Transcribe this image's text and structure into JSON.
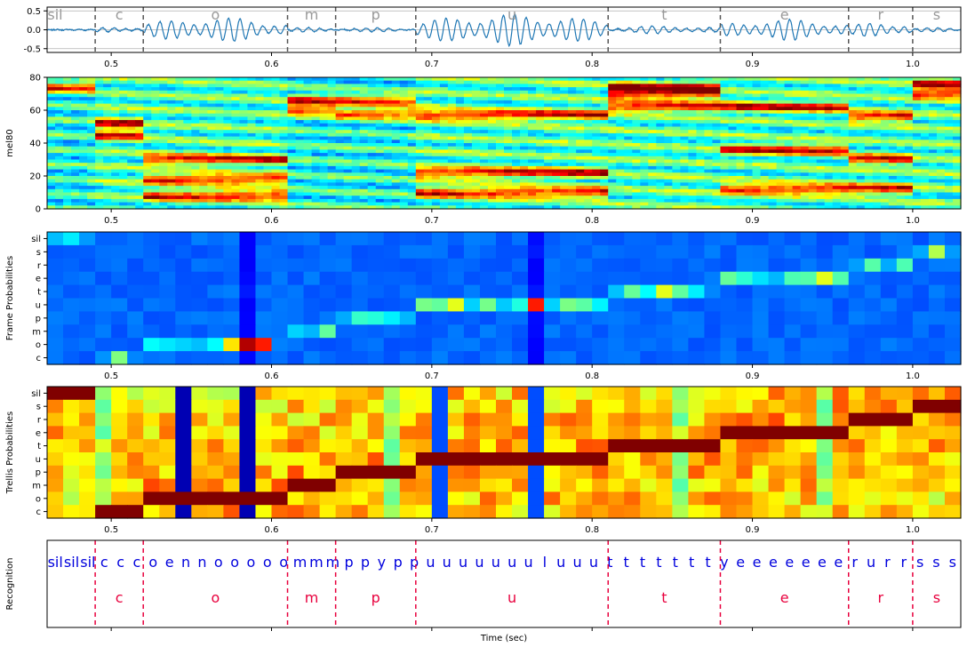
{
  "chart_data": [
    {
      "type": "line",
      "panel": "waveform",
      "xlim": [
        0.46,
        1.03
      ],
      "ylim": [
        -0.6,
        0.6
      ],
      "yticks": [
        "0.5",
        "0.0",
        "-0.5"
      ],
      "xticks": [
        "0.5",
        "0.6",
        "0.7",
        "0.8",
        "0.9",
        "1.0"
      ],
      "segments": [
        {
          "label": "sil",
          "start": 0.46,
          "end": 0.49
        },
        {
          "label": "c",
          "start": 0.49,
          "end": 0.52
        },
        {
          "label": "o",
          "start": 0.52,
          "end": 0.61
        },
        {
          "label": "m",
          "start": 0.61,
          "end": 0.64
        },
        {
          "label": "p",
          "start": 0.64,
          "end": 0.69
        },
        {
          "label": "u",
          "start": 0.69,
          "end": 0.81
        },
        {
          "label": "t",
          "start": 0.81,
          "end": 0.88
        },
        {
          "label": "e",
          "start": 0.88,
          "end": 0.96
        },
        {
          "label": "r",
          "start": 0.96,
          "end": 1.0
        },
        {
          "label": "s",
          "start": 1.0,
          "end": 1.03
        }
      ],
      "color": "#1f77b4"
    },
    {
      "type": "heatmap",
      "panel": "mel",
      "ylabel": "mel80",
      "ylim": [
        0,
        80
      ],
      "yticks": [
        "80",
        "60",
        "40",
        "20",
        "0"
      ],
      "xticks": [
        "0.5",
        "0.6",
        "0.7",
        "0.8",
        "0.9",
        "1.0"
      ],
      "colormap": "jet"
    },
    {
      "type": "heatmap",
      "panel": "frame",
      "ylabel": "Frame Probabilities",
      "rows": [
        "sil",
        "s",
        "r",
        "e",
        "t",
        "u",
        "p",
        "m",
        "o",
        "c"
      ],
      "xticks": [
        "0.5",
        "0.6",
        "0.7",
        "0.8",
        "0.9",
        "1.0"
      ],
      "colormap": "jet"
    },
    {
      "type": "heatmap",
      "panel": "trellis",
      "ylabel": "Trellis Probabilities",
      "rows": [
        "sil",
        "s",
        "r",
        "e",
        "t",
        "u",
        "p",
        "m",
        "o",
        "c"
      ],
      "xticks": [
        "0.5",
        "0.6",
        "0.7",
        "0.8",
        "0.9",
        "1.0"
      ],
      "colormap": "jet"
    },
    {
      "type": "table",
      "panel": "recognition",
      "ylabel": "Recognition",
      "xlabel": "Time (sec)",
      "frame_labels": [
        "sil",
        "sil",
        "sil",
        "c",
        "c",
        "c",
        "o",
        "e",
        "n",
        "n",
        "o",
        "o",
        "o",
        "o",
        "o",
        "m",
        "m",
        "m",
        "p",
        "p",
        "y",
        "p",
        "p",
        "u",
        "u",
        "u",
        "u",
        "u",
        "u",
        "u",
        "l",
        "u",
        "u",
        "u",
        "t",
        "t",
        "t",
        "t",
        "t",
        "t",
        "t",
        "y",
        "e",
        "e",
        "e",
        "e",
        "e",
        "e",
        "e",
        "r",
        "u",
        "r",
        "r",
        "s",
        "s",
        "s"
      ],
      "segment_labels": [
        "c",
        "o",
        "m",
        "p",
        "u",
        "t",
        "e",
        "r",
        "s"
      ]
    }
  ],
  "colors": {
    "wave": "#1f77b4",
    "frame_text": "#0000dd",
    "segment_text": "#e8003d",
    "segment_line": "#555555",
    "boundary_line": "#e8003d"
  }
}
